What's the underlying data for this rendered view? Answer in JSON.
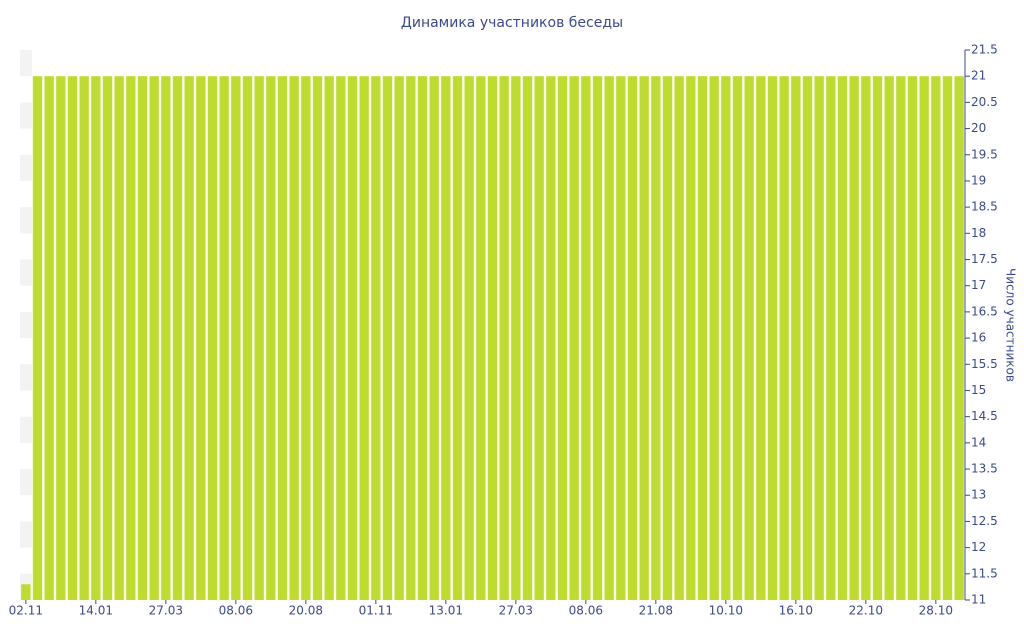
{
  "chart_data": {
    "type": "bar",
    "title": "Динамика участников беседы",
    "y_axis_label": "Число участников",
    "categories": [
      "02.11",
      null,
      null,
      null,
      null,
      null,
      "14.01",
      null,
      null,
      null,
      null,
      null,
      "27.03",
      null,
      null,
      null,
      null,
      null,
      "08.06",
      null,
      null,
      null,
      null,
      null,
      "20.08",
      null,
      null,
      null,
      null,
      null,
      "01.11",
      null,
      null,
      null,
      null,
      null,
      "13.01",
      null,
      null,
      null,
      null,
      null,
      "27.03",
      null,
      null,
      null,
      null,
      null,
      "08.06",
      null,
      null,
      null,
      null,
      null,
      "21.08",
      null,
      null,
      null,
      null,
      null,
      "10.10",
      null,
      null,
      null,
      null,
      null,
      "16.10",
      null,
      null,
      null,
      null,
      null,
      "22.10",
      null,
      null,
      null,
      null,
      null,
      "28.10",
      null,
      null
    ],
    "values": [
      11.3,
      21,
      21,
      21,
      21,
      21,
      21,
      21,
      21,
      21,
      21,
      21,
      21,
      21,
      21,
      21,
      21,
      21,
      21,
      21,
      21,
      21,
      21,
      21,
      21,
      21,
      21,
      21,
      21,
      21,
      21,
      21,
      21,
      21,
      21,
      21,
      21,
      21,
      21,
      21,
      21,
      21,
      21,
      21,
      21,
      21,
      21,
      21,
      21,
      21,
      21,
      21,
      21,
      21,
      21,
      21,
      21,
      21,
      21,
      21,
      21,
      21,
      21,
      21,
      21,
      21,
      21,
      21,
      21,
      21,
      21,
      21,
      21,
      21,
      21,
      21,
      21,
      21,
      21,
      21,
      21
    ],
    "color": "#bedc2e",
    "ylim": [
      11,
      21.5
    ],
    "yticks": [
      11,
      11.5,
      12,
      12.5,
      13,
      13.5,
      14,
      14.5,
      15,
      15.5,
      16,
      16.5,
      17,
      17.5,
      18,
      18.5,
      19,
      19.5,
      20,
      20.5,
      21,
      21.5
    ]
  }
}
